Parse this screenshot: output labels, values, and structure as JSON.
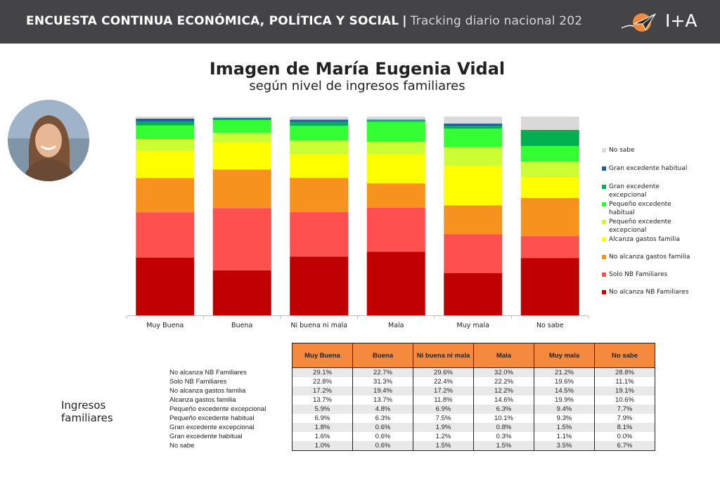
{
  "header": {
    "title_main": "ENCUESTA CONTINUA ECONÓMICA, POLÍTICA Y SOCIAL",
    "separator": "|",
    "title_sub": "Tracking diario nacional 202",
    "logo_text": "I+A",
    "logo_icon": "paper-plane-icon"
  },
  "side_label": "Ingresos familiares",
  "chart_data": {
    "type": "bar",
    "stacked": true,
    "stacked_percent": true,
    "title": "Imagen de María Eugenia Vidal",
    "subtitle": "según nivel de ingresos familiares",
    "categories": [
      "Muy Buena",
      "Buena",
      "Ni buena ni mala",
      "Mala",
      "Muy mala",
      "No sabe"
    ],
    "ylim": [
      0,
      100
    ],
    "legend_position": "right",
    "grid": false,
    "series": [
      {
        "name": "No alcanza NB Familiares",
        "color": "#c00000",
        "values": [
          29.1,
          22.7,
          29.6,
          32.0,
          21.2,
          28.8
        ]
      },
      {
        "name": "Solo NB Familiares",
        "color": "#ff5050",
        "values": [
          22.8,
          31.3,
          22.4,
          22.2,
          19.6,
          11.1
        ]
      },
      {
        "name": "No alcanza gastos familia",
        "color": "#f7921e",
        "values": [
          17.2,
          19.4,
          17.2,
          12.2,
          14.5,
          19.1
        ]
      },
      {
        "name": "Alcanza gastos familia",
        "color": "#ffff00",
        "values": [
          13.7,
          13.7,
          11.8,
          14.6,
          19.9,
          10.6
        ]
      },
      {
        "name": "Pequeño excedente excepcional",
        "color": "#ccff33",
        "values": [
          5.9,
          4.8,
          6.9,
          6.3,
          9.4,
          7.7
        ]
      },
      {
        "name": "Pequeño excedente habitual",
        "color": "#33ff33",
        "values": [
          6.9,
          6.3,
          7.5,
          10.1,
          9.3,
          7.9
        ]
      },
      {
        "name": "Gran excedente excepcional",
        "color": "#00b050",
        "values": [
          1.8,
          0.6,
          1.9,
          0.8,
          1.5,
          8.1
        ]
      },
      {
        "name": "Gran excedente habitual",
        "color": "#1f5fa0",
        "values": [
          1.6,
          0.6,
          1.2,
          0.3,
          1.1,
          0.0
        ]
      },
      {
        "name": "No sabe",
        "color": "#d9d9d9",
        "values": [
          1.0,
          0.6,
          1.5,
          1.5,
          3.5,
          6.7
        ]
      }
    ],
    "legend_order": [
      "No sabe",
      "Gran excedente habitual",
      "Gran excedente excepcional",
      "Pequeño excedente habitual",
      "Pequeño excedente excepcional",
      "Alcanza gastos familia",
      "No alcanza gastos familia",
      "Solo NB Familiares",
      "No alcanza NB Familiares"
    ]
  },
  "table": {
    "headers": [
      "Muy Buena",
      "Buena",
      "Ni buena ni mala",
      "Mala",
      "Muy mala",
      "No sabe"
    ],
    "header_color": "#f58a3e",
    "rows": [
      {
        "label": "No alcanza NB Familiares",
        "values": [
          "29.1%",
          "22.7%",
          "29.6%",
          "32.0%",
          "21.2%",
          "28.8%"
        ]
      },
      {
        "label": "Solo NB Familiares",
        "values": [
          "22.8%",
          "31.3%",
          "22.4%",
          "22.2%",
          "19.6%",
          "11.1%"
        ]
      },
      {
        "label": "No alcanza gastos familia",
        "values": [
          "17.2%",
          "19.4%",
          "17.2%",
          "12.2%",
          "14.5%",
          "19.1%"
        ]
      },
      {
        "label": "Alcanza gastos familia",
        "values": [
          "13.7%",
          "13.7%",
          "11.8%",
          "14.6%",
          "19.9%",
          "10.6%"
        ]
      },
      {
        "label": "Pequeño excedente excepcional",
        "values": [
          "5.9%",
          "4.8%",
          "6.9%",
          "6.3%",
          "9.4%",
          "7.7%"
        ]
      },
      {
        "label": "Pequeño excedente habitual",
        "values": [
          "6.9%",
          "6.3%",
          "7.5%",
          "10.1%",
          "9.3%",
          "7.9%"
        ]
      },
      {
        "label": "Gran excedente excepcional",
        "values": [
          "1.8%",
          "0.6%",
          "1.9%",
          "0.8%",
          "1.5%",
          "8.1%"
        ]
      },
      {
        "label": "Gran excedente habitual",
        "values": [
          "1.6%",
          "0.6%",
          "1.2%",
          "0.3%",
          "1.1%",
          "0.0%"
        ]
      },
      {
        "label": "No sabe",
        "values": [
          "1.0%",
          "0.6%",
          "1.5%",
          "1.5%",
          "3.5%",
          "6.7%"
        ]
      }
    ]
  }
}
